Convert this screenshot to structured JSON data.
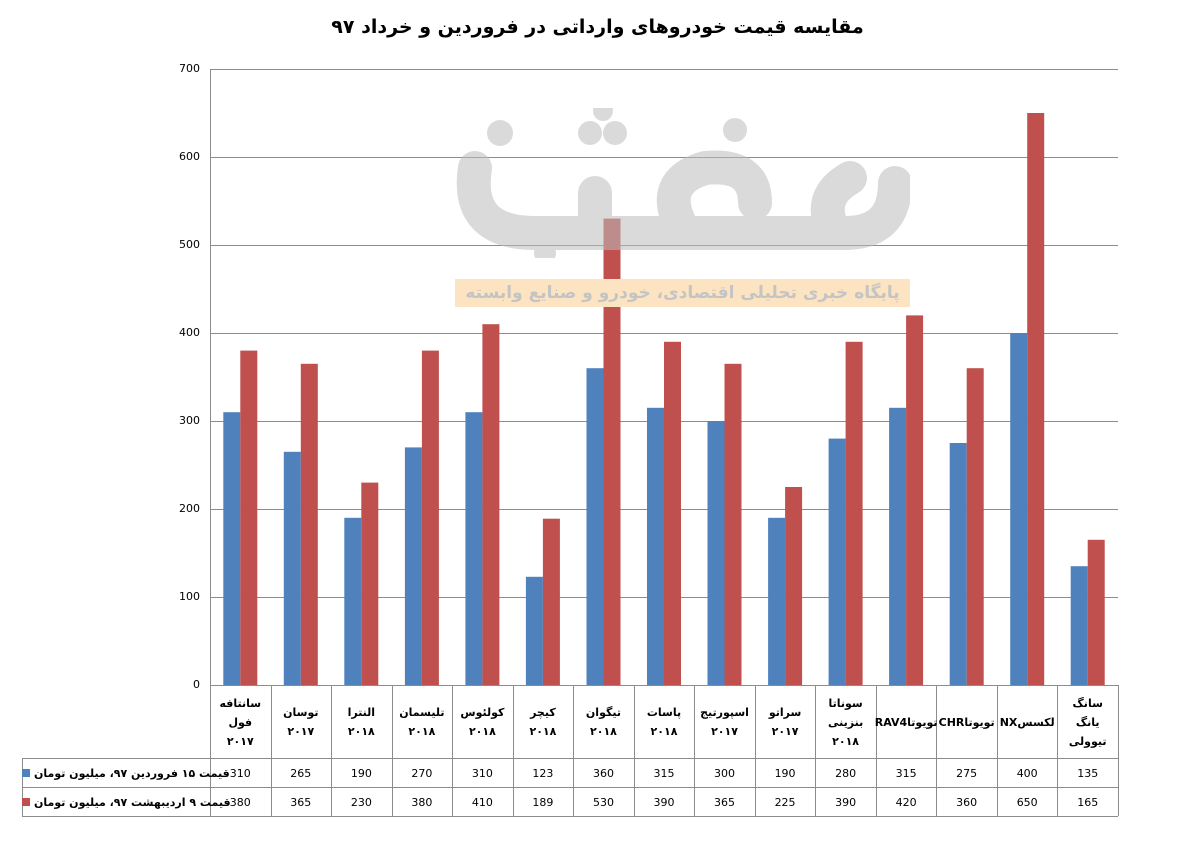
{
  "chart_data": {
    "type": "bar",
    "title": "مقایسه قیمت خودروهای وارداتی در فروردین و خرداد ۹۷",
    "xlabel": "",
    "ylabel": "",
    "ylim": [
      0,
      700
    ],
    "yticks": [
      0,
      100,
      200,
      300,
      400,
      500,
      600,
      700
    ],
    "grid": true,
    "legend": "data-table-left",
    "categories": [
      [
        "سانتافه فول",
        "۲۰۱۷"
      ],
      [
        "توسان",
        "۲۰۱۷"
      ],
      [
        "النترا ۲۰۱۸"
      ],
      [
        "تلیسمان",
        "۲۰۱۸"
      ],
      [
        "کولئوس",
        "۲۰۱۸"
      ],
      [
        "کیچر ۲۰۱۸"
      ],
      [
        "تیگوان",
        "۲۰۱۸"
      ],
      [
        "پاسات ۲۰۱۸"
      ],
      [
        "اسپورتیج",
        "۲۰۱۷"
      ],
      [
        "سراتو ۲۰۱۷"
      ],
      [
        "سوناتا",
        "بنزینی",
        "۲۰۱۸"
      ],
      [
        "RAV4تویوتا"
      ],
      [
        "CHRتویوتا"
      ],
      [
        "NXلکسس"
      ],
      [
        "سانگ یانگ",
        "تیوولی"
      ]
    ],
    "series": [
      {
        "name": "قیمت ۱۵ فروردین ۹۷، میلیون تومان",
        "color": "#4f81bd",
        "values": [
          310,
          265,
          190,
          270,
          310,
          123,
          360,
          315,
          300,
          190,
          280,
          315,
          275,
          400,
          135
        ]
      },
      {
        "name": "قیمت ۹ اردیبهشت ۹۷، میلیون تومان",
        "color": "#c0504d",
        "values": [
          380,
          365,
          230,
          380,
          410,
          189,
          530,
          390,
          365,
          225,
          390,
          420,
          360,
          650,
          165
        ]
      }
    ]
  },
  "watermark": {
    "logo": "خبرخاتین",
    "tagline": "پایگاه خبری تحلیلی اقتصادی، خودرو و صنایع وابسته"
  }
}
